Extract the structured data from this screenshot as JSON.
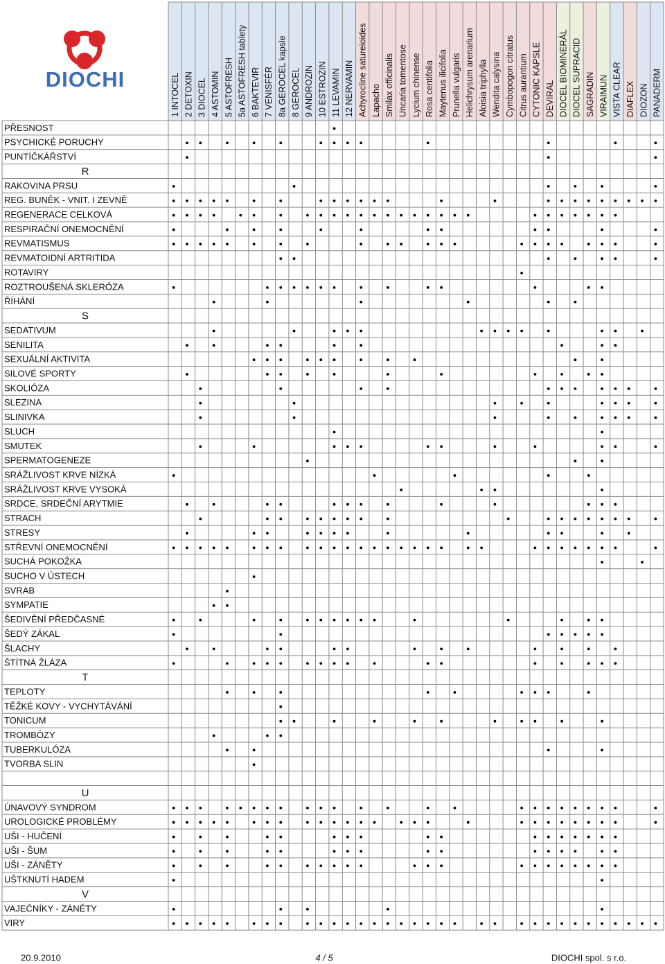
{
  "header": {
    "logo_text": "DIOCHI"
  },
  "columns": [
    {
      "name": "1 INTOCEL",
      "color": "#dce6f2"
    },
    {
      "name": "2 DETOXIN",
      "color": "#dce6f2"
    },
    {
      "name": "3 DIOCEL",
      "color": "#dce6f2"
    },
    {
      "name": "4 ASTOMIN",
      "color": "#dce6f2"
    },
    {
      "name": "5 ASTOFRESH",
      "color": "#dce6f2"
    },
    {
      "name": "5a ASTOFRESH tablety",
      "color": "#dce6f2"
    },
    {
      "name": "6 BAKTEVIR",
      "color": "#dce6f2"
    },
    {
      "name": "7 VENISFÉR",
      "color": "#dce6f2"
    },
    {
      "name": "8a GEROCEL kapsle",
      "color": "#dce6f2"
    },
    {
      "name": "8 GEROCEL",
      "color": "#dce6f2"
    },
    {
      "name": "9 ANDROZIN",
      "color": "#dce6f2"
    },
    {
      "name": "10 ESTROZIN",
      "color": "#dce6f2"
    },
    {
      "name": "11 LEVAMIN",
      "color": "#dce6f2"
    },
    {
      "name": "12 NERVAMIN",
      "color": "#dce6f2"
    },
    {
      "name": "Achyrocline satureioides",
      "color": "#f2dcdb"
    },
    {
      "name": "Lapacho",
      "color": "#f2dcdb"
    },
    {
      "name": "Smilax officinalis",
      "color": "#f2dcdb"
    },
    {
      "name": "Uncaria tomentose",
      "color": "#f2dcdb"
    },
    {
      "name": "Lycium chinense",
      "color": "#f2dcdb"
    },
    {
      "name": "Rosa centifolia",
      "color": "#f2dcdb"
    },
    {
      "name": "Maytenus ilicifolia",
      "color": "#f2dcdb"
    },
    {
      "name": "Prunella vulgaris",
      "color": "#f2dcdb"
    },
    {
      "name": "Helichrysum arenarium",
      "color": "#f2dcdb"
    },
    {
      "name": "Aloisia triphylla",
      "color": "#f2dcdb"
    },
    {
      "name": "Wendita calysina",
      "color": "#f2dcdb"
    },
    {
      "name": "Cymbopogon citratus",
      "color": "#f2dcdb"
    },
    {
      "name": "Citrus aurantium",
      "color": "#f2dcdb"
    },
    {
      "name": "CYTONIC KAPSLE",
      "color": "#f2dcdb"
    },
    {
      "name": "DEVIRAL",
      "color": "#f2dcdb"
    },
    {
      "name": "DIOCEL BIOMINERÁL",
      "color": "#ebf1de"
    },
    {
      "name": "DIOCEL SUPRACID",
      "color": "#ebf1de"
    },
    {
      "name": "SAGRADIN",
      "color": "#f2dcdb"
    },
    {
      "name": "VIRAIMUN",
      "color": "#ebf1de"
    },
    {
      "name": "VISTA CLEAR",
      "color": "#dce6f2"
    },
    {
      "name": "DIAFLEX",
      "color": "#f2dcdb"
    },
    {
      "name": "DIOZON",
      "color": "#dce6f2"
    },
    {
      "name": "PANADERM",
      "color": "#dce6f2"
    }
  ],
  "rows": [
    {
      "label": "PŘESNOST",
      "dots": [
        12
      ]
    },
    {
      "label": "PSYCHICKÉ PORUCHY",
      "dots": [
        1,
        2,
        4,
        6,
        8,
        11,
        12,
        13,
        14,
        19,
        28,
        33,
        36
      ]
    },
    {
      "label": "PUNTÍČKÁŘSTVÍ",
      "dots": [
        1,
        28,
        36
      ]
    },
    {
      "section": "R"
    },
    {
      "label": "RAKOVINA PRSU",
      "dots": [
        0,
        9,
        28,
        30,
        32,
        36
      ]
    },
    {
      "label": "REG. BUNĚK - VNIT. I ZEVNĚ",
      "dots": [
        0,
        1,
        2,
        3,
        4,
        6,
        8,
        11,
        12,
        13,
        14,
        15,
        16,
        20,
        24,
        28,
        29,
        30,
        31,
        32,
        33,
        34,
        35,
        36
      ]
    },
    {
      "label": "REGENERACE CELKOVÁ",
      "dots": [
        0,
        1,
        2,
        3,
        5,
        6,
        8,
        10,
        11,
        12,
        13,
        14,
        15,
        16,
        17,
        18,
        19,
        20,
        21,
        22,
        27,
        28,
        29,
        30,
        31,
        32,
        33
      ]
    },
    {
      "label": "RESPIRAČNÍ ONEMOCNĚNÍ",
      "dots": [
        0,
        4,
        6,
        8,
        11,
        14,
        19,
        20,
        27,
        28,
        32,
        36
      ]
    },
    {
      "label": "REVMATISMUS",
      "dots": [
        0,
        1,
        2,
        3,
        4,
        6,
        8,
        10,
        14,
        16,
        17,
        19,
        20,
        21,
        26,
        27,
        28,
        29,
        31,
        32,
        33,
        36
      ]
    },
    {
      "label": "REVMATOIDNÍ ARTRITIDA",
      "dots": [
        8,
        9,
        28,
        30,
        32,
        33,
        36
      ]
    },
    {
      "label": "ROTAVIRY",
      "dots": [
        26
      ]
    },
    {
      "label": "ROZTROUŠENÁ SKLERÓZA",
      "dots": [
        0,
        7,
        8,
        9,
        10,
        11,
        12,
        14,
        16,
        19,
        20,
        27,
        31,
        32
      ]
    },
    {
      "label": "ŘÍHÁNÍ",
      "dots": [
        3,
        7,
        14,
        22,
        28,
        30
      ]
    },
    {
      "section": "S"
    },
    {
      "label": "SEDATIVUM",
      "dots": [
        3,
        9,
        12,
        13,
        14,
        23,
        24,
        25,
        26,
        28,
        32,
        33,
        35
      ]
    },
    {
      "label": "SENILITA",
      "dots": [
        1,
        3,
        7,
        8,
        12,
        14,
        29,
        32,
        33
      ]
    },
    {
      "label": "SEXUÁLNÍ AKTIVITA",
      "dots": [
        6,
        7,
        8,
        10,
        11,
        12,
        14,
        16,
        18,
        30,
        32
      ]
    },
    {
      "label": "SILOVÉ SPORTY",
      "dots": [
        1,
        7,
        8,
        10,
        12,
        16,
        20,
        27,
        29,
        31,
        32
      ]
    },
    {
      "label": "SKOLIÓZA",
      "dots": [
        2,
        8,
        14,
        16,
        28,
        29,
        30,
        32,
        33,
        34,
        36
      ]
    },
    {
      "label": "SLEZINA",
      "dots": [
        2,
        9,
        24,
        26,
        28,
        32,
        33,
        34,
        36
      ]
    },
    {
      "label": "SLINIVKA",
      "dots": [
        2,
        9,
        24,
        28,
        30,
        32,
        33,
        34,
        36
      ]
    },
    {
      "label": "SLUCH",
      "dots": [
        12,
        32
      ]
    },
    {
      "label": "SMUTEK",
      "dots": [
        2,
        6,
        12,
        13,
        14,
        19,
        20,
        24,
        27,
        32,
        33,
        36
      ]
    },
    {
      "label": "SPERMATOGENEZE",
      "dots": [
        10,
        30,
        32
      ]
    },
    {
      "label": "SRÁŽLIVOST KRVE NÍZKÁ",
      "dots": [
        0,
        15,
        21,
        28,
        31
      ]
    },
    {
      "label": "SRÁŽLIVOST KRVE VYSOKÁ",
      "dots": [
        17,
        23,
        24,
        32
      ]
    },
    {
      "label": "SRDCE, SRDEČNÍ ARYTMIE",
      "dots": [
        1,
        3,
        7,
        8,
        12,
        13,
        14,
        16,
        20,
        24,
        31,
        32,
        33
      ]
    },
    {
      "label": "STRACH",
      "dots": [
        2,
        7,
        8,
        10,
        11,
        12,
        13,
        14,
        16,
        25,
        28,
        29,
        30,
        31,
        32,
        33,
        34,
        36
      ]
    },
    {
      "label": "STRESY",
      "dots": [
        1,
        6,
        7,
        10,
        11,
        12,
        13,
        16,
        22,
        28,
        29,
        32,
        34
      ]
    },
    {
      "label": "STŘEVNÍ ONEMOCNĚNÍ",
      "dots": [
        0,
        1,
        2,
        3,
        4,
        6,
        7,
        8,
        10,
        11,
        12,
        13,
        14,
        15,
        16,
        17,
        18,
        19,
        20,
        22,
        23,
        27,
        28,
        29,
        30,
        31,
        32,
        33,
        36
      ]
    },
    {
      "label": "SUCHÁ POKOŽKA",
      "dots": [
        32,
        35
      ]
    },
    {
      "label": "SUCHO V ÚSTECH",
      "dots": [
        6
      ]
    },
    {
      "label": "SVRAB",
      "dots": [
        4
      ]
    },
    {
      "label": "SYMPATIE",
      "dots": [
        3,
        4
      ]
    },
    {
      "label": "ŠEDIVĚNÍ PŘEDČASNÉ",
      "dots": [
        0,
        2,
        6,
        8,
        10,
        11,
        12,
        13,
        14,
        15,
        18,
        25,
        29,
        31,
        32
      ]
    },
    {
      "label": "ŠEDÝ ZÁKAL",
      "dots": [
        0,
        8,
        28,
        29,
        30,
        31,
        32
      ]
    },
    {
      "label": "ŠLACHY",
      "dots": [
        1,
        3,
        7,
        8,
        12,
        13,
        18,
        20,
        22,
        27,
        29,
        31,
        33
      ]
    },
    {
      "label": "ŠTÍTNÁ ŽLÁZA",
      "dots": [
        0,
        4,
        6,
        7,
        8,
        10,
        11,
        12,
        13,
        15,
        19,
        20,
        27,
        29,
        31,
        32,
        33
      ]
    },
    {
      "section": "T"
    },
    {
      "label": "TEPLOTY",
      "dots": [
        4,
        6,
        8,
        19,
        21,
        26,
        27,
        28,
        31
      ]
    },
    {
      "label": "TĚŽKÉ KOVY - VYCHYTÁVÁNÍ",
      "dots": [
        8
      ]
    },
    {
      "label": "TONICUM",
      "dots": [
        8,
        9,
        12,
        15,
        18,
        20,
        24,
        26,
        27,
        29,
        32
      ]
    },
    {
      "label": "TROMBÓZY",
      "dots": [
        3,
        7,
        8
      ]
    },
    {
      "label": "TUBERKULÓZA",
      "dots": [
        4,
        6,
        28,
        32
      ]
    },
    {
      "label": "TVORBA SLIN",
      "dots": [
        6
      ]
    },
    {
      "blank": true
    },
    {
      "section": "U"
    },
    {
      "label": "ÚNAVOVÝ SYNDROM",
      "dots": [
        0,
        1,
        2,
        4,
        5,
        6,
        7,
        8,
        10,
        11,
        12,
        14,
        16,
        19,
        21,
        26,
        27,
        28,
        29,
        30,
        31,
        32,
        33,
        36
      ]
    },
    {
      "label": "UROLOGICKÉ PROBLÉMY",
      "dots": [
        0,
        1,
        2,
        3,
        4,
        6,
        7,
        8,
        10,
        11,
        12,
        13,
        14,
        15,
        17,
        18,
        19,
        22,
        26,
        27,
        28,
        29,
        30,
        31,
        32,
        33,
        36
      ]
    },
    {
      "label": "UŠI - HUČENÍ",
      "dots": [
        0,
        2,
        4,
        7,
        8,
        12,
        13,
        14,
        19,
        20,
        27,
        28,
        29,
        30,
        31,
        32,
        33
      ]
    },
    {
      "label": "UŠI - ŠUM",
      "dots": [
        0,
        2,
        4,
        7,
        8,
        12,
        13,
        14,
        19,
        20,
        27,
        28,
        29,
        30,
        32,
        33
      ]
    },
    {
      "label": "UŠI - ZÁNĚTY",
      "dots": [
        0,
        2,
        4,
        7,
        8,
        10,
        11,
        12,
        13,
        14,
        18,
        19,
        20,
        26,
        27,
        28,
        29,
        30,
        31,
        32,
        33
      ]
    },
    {
      "label": "UŠTKNUTÍ HADEM",
      "dots": [
        0,
        32
      ]
    },
    {
      "section": "V"
    },
    {
      "label": "VAJEČNÍKY - ZÁNĚTY",
      "dots": [
        0,
        8,
        10,
        16,
        32
      ]
    },
    {
      "label": "VIRY",
      "dots": [
        0,
        1,
        2,
        3,
        4,
        6,
        7,
        8,
        10,
        11,
        12,
        13,
        14,
        15,
        16,
        17,
        18,
        19,
        20,
        21,
        23,
        24,
        26,
        27,
        28,
        29,
        30,
        31,
        32,
        33,
        34,
        35,
        36
      ]
    }
  ],
  "footer": {
    "date": "20.9.2010",
    "page": "4 / 5",
    "company": "DIOCHI spol. s r.o."
  }
}
